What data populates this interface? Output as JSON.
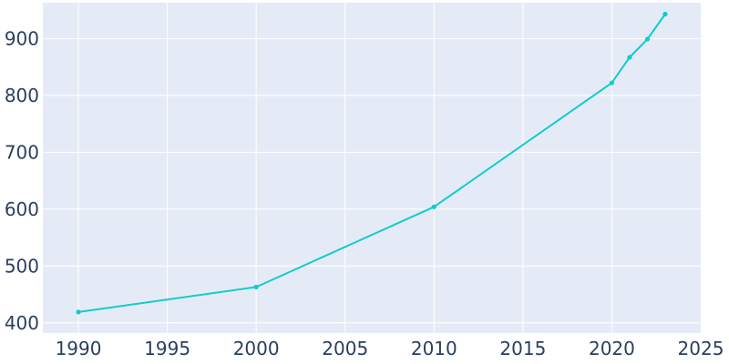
{
  "chart_data": {
    "type": "line",
    "title": "",
    "xlabel": "",
    "ylabel": "",
    "xlim": [
      1988,
      2025
    ],
    "ylim": [
      382,
      963
    ],
    "x_ticks": [
      1990,
      1995,
      2000,
      2005,
      2010,
      2015,
      2020,
      2025
    ],
    "y_ticks": [
      400,
      500,
      600,
      700,
      800,
      900
    ],
    "grid": true,
    "legend": "none",
    "series": [
      {
        "x": [
          1990,
          2000,
          2010,
          2020,
          2021,
          2022,
          2023
        ],
        "y": [
          419,
          463,
          604,
          822,
          867,
          899,
          943
        ]
      }
    ],
    "colors": {
      "line": "#11cccc",
      "plot_background": "#e5ebf6",
      "grid": "#ffffff",
      "tick_text": "#2a3f5f"
    }
  }
}
